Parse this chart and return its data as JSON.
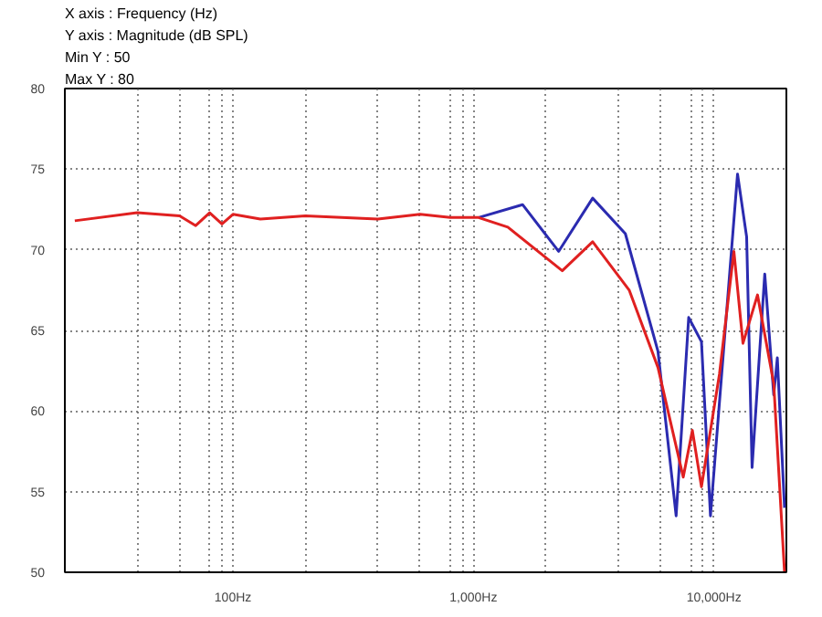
{
  "chart_data": {
    "type": "line",
    "annotations": [
      "X axis : Frequency (Hz)",
      "Y axis : Magnitude (dB SPL)",
      "Min Y : 50",
      "Max Y : 80"
    ],
    "series": [
      {
        "color": "#2b2bb0",
        "x": [
          1050,
          1600,
          2260,
          3130,
          4280,
          5850,
          6960,
          7850,
          8870,
          9670,
          12530,
          13670,
          14400,
          16260,
          17720,
          18340,
          19650
        ],
        "values": [
          72.0,
          72.8,
          69.9,
          73.2,
          71.0,
          63.7,
          53.5,
          65.8,
          64.3,
          53.5,
          74.7,
          70.8,
          56.5,
          68.5,
          61.0,
          63.3,
          54.0
        ]
      },
      {
        "color": "#e02020",
        "x": [
          22,
          40,
          60,
          70,
          80,
          90,
          100,
          130,
          200,
          400,
          600,
          800,
          1050,
          1390,
          2340,
          3130,
          4440,
          5850,
          7450,
          8130,
          8870,
          10540,
          12100,
          13200,
          15170,
          17720,
          19650
        ],
        "values": [
          71.8,
          72.3,
          72.1,
          71.5,
          72.3,
          71.6,
          72.2,
          71.9,
          72.1,
          71.9,
          72.2,
          72.0,
          72.0,
          71.4,
          68.7,
          70.5,
          67.5,
          62.7,
          55.9,
          58.8,
          55.3,
          62.3,
          69.9,
          64.2,
          67.2,
          61.7,
          50.0
        ]
      }
    ],
    "log": "x",
    "xlim": [
      20,
      20000
    ],
    "ylim": [
      50,
      80
    ],
    "xticks": [
      {
        "value": 40,
        "label": null
      },
      {
        "value": 60,
        "label": null
      },
      {
        "value": 80,
        "label": null
      },
      {
        "value": 90,
        "label": null
      },
      {
        "value": 100,
        "label": "100Hz"
      },
      {
        "value": 200,
        "label": null
      },
      {
        "value": 400,
        "label": null
      },
      {
        "value": 600,
        "label": null
      },
      {
        "value": 800,
        "label": null
      },
      {
        "value": 900,
        "label": null
      },
      {
        "value": 1000,
        "label": "1,000Hz"
      },
      {
        "value": 2000,
        "label": null
      },
      {
        "value": 4000,
        "label": null
      },
      {
        "value": 6000,
        "label": null
      },
      {
        "value": 8000,
        "label": null
      },
      {
        "value": 9000,
        "label": null
      },
      {
        "value": 10000,
        "label": "10,000Hz"
      },
      {
        "value": 20000,
        "label": null
      }
    ],
    "yticks": [
      50,
      55,
      60,
      65,
      70,
      75,
      80
    ],
    "grid": true,
    "marker": "none",
    "line_style": "solid"
  }
}
